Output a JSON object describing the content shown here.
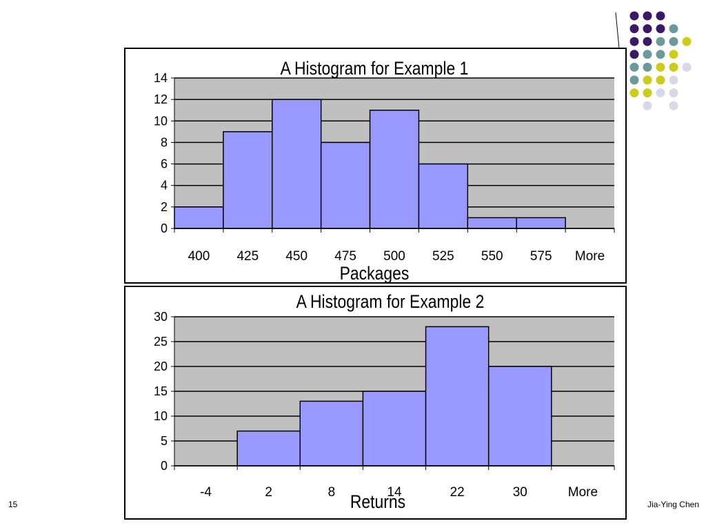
{
  "slide": {
    "page_number": "15",
    "author": "Jia-Ying Chen"
  },
  "colors": {
    "bar_fill": "#9999ff",
    "plot_bg": "#c0c0c0",
    "dot_purple": "#3a1a66",
    "dot_teal": "#6a9a9a",
    "dot_yellow": "#cccc1a",
    "dot_lavender": "#d8d8e8"
  },
  "chart_data": [
    {
      "type": "bar",
      "title": "A Histogram for Example 1",
      "xlabel": "Packages",
      "ylabel": "",
      "categories": [
        "400",
        "425",
        "450",
        "475",
        "500",
        "525",
        "550",
        "575",
        "More"
      ],
      "values": [
        2,
        9,
        12,
        8,
        11,
        6,
        1,
        1,
        0
      ],
      "ylim": [
        0,
        14
      ],
      "yticks": [
        0,
        2,
        4,
        6,
        8,
        10,
        12,
        14
      ],
      "grid": true,
      "legend": "none"
    },
    {
      "type": "bar",
      "title": "A Histogram for Example 2",
      "xlabel": "Returns",
      "ylabel": "",
      "categories": [
        "-4",
        "2",
        "8",
        "14",
        "22",
        "30",
        "More"
      ],
      "values": [
        0,
        7,
        13,
        15,
        28,
        20,
        0
      ],
      "ylim": [
        0,
        30
      ],
      "yticks": [
        0,
        5,
        10,
        15,
        20,
        25,
        30
      ],
      "grid": true,
      "legend": "none"
    }
  ]
}
